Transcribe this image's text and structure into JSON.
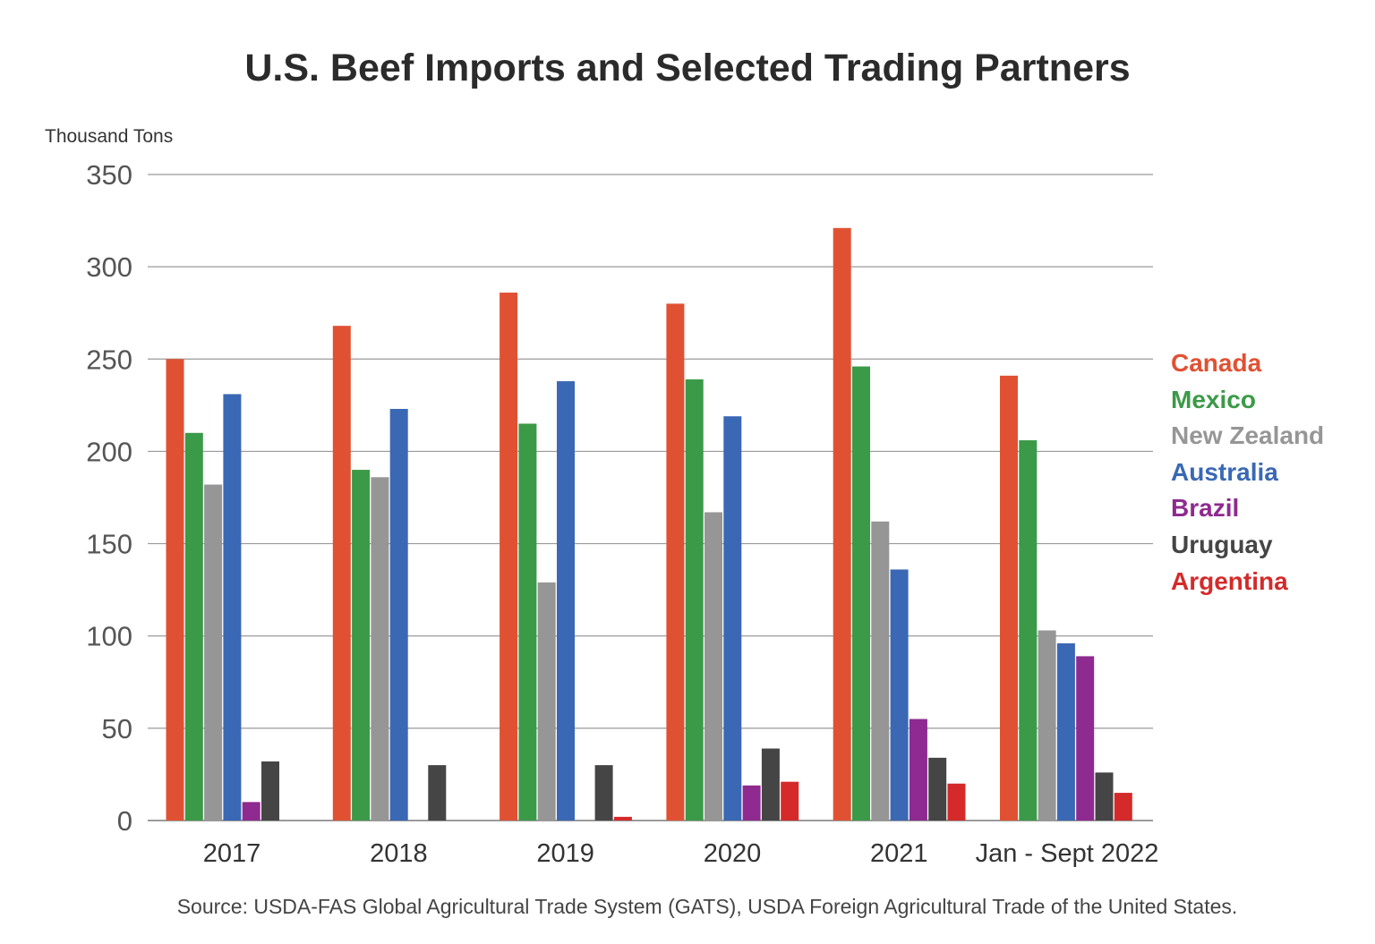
{
  "chart_data": {
    "type": "bar",
    "title": "U.S. Beef Imports and Selected Trading Partners",
    "ylabel": "Thousand Tons",
    "xlabel": "",
    "ylim": [
      0,
      350
    ],
    "yticks": [
      0,
      50,
      100,
      150,
      200,
      250,
      300,
      350
    ],
    "grid": true,
    "legend_position": "right",
    "categories": [
      "2017",
      "2018",
      "2019",
      "2020",
      "2021",
      "Jan - Sept 2022"
    ],
    "series": [
      {
        "name": "Canada",
        "color": "#e05133",
        "values": [
          250,
          268,
          286,
          280,
          321,
          241
        ]
      },
      {
        "name": "Mexico",
        "color": "#3b9a48",
        "values": [
          210,
          190,
          215,
          239,
          246,
          206
        ]
      },
      {
        "name": "New Zealand",
        "color": "#969696",
        "values": [
          182,
          186,
          129,
          167,
          162,
          103
        ]
      },
      {
        "name": "Australia",
        "color": "#3a68b4",
        "values": [
          231,
          223,
          238,
          219,
          136,
          96
        ]
      },
      {
        "name": "Brazil",
        "color": "#8e2a90",
        "values": [
          10,
          0,
          0,
          19,
          55,
          89
        ]
      },
      {
        "name": "Uruguay",
        "color": "#454545",
        "values": [
          32,
          30,
          30,
          39,
          34,
          26
        ]
      },
      {
        "name": "Argentina",
        "color": "#d42a2a",
        "values": [
          0,
          0,
          2,
          21,
          20,
          15
        ]
      }
    ],
    "source": "Source: USDA-FAS Global Agricultural Trade System (GATS), USDA Foreign Agricultural Trade of the United States."
  }
}
